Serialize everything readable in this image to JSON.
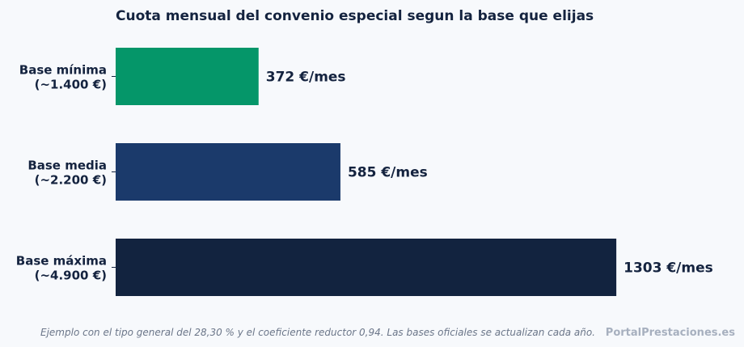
{
  "chart_data": {
    "type": "bar",
    "orientation": "horizontal",
    "title": "Cuota mensual del convenio especial segun la base que elijas",
    "categories": [
      [
        "Base mínima",
        "(~1.400 €)"
      ],
      [
        "Base media",
        "(~2.200 €)"
      ],
      [
        "Base máxima",
        "(~4.900 €)"
      ]
    ],
    "values": [
      372,
      585,
      1303
    ],
    "value_labels": [
      "372 €/mes",
      "585 €/mes",
      "1303 €/mes"
    ],
    "colors": [
      "#059669",
      "#1b3a6b",
      "#12233f"
    ],
    "xlabel": "",
    "ylabel": "",
    "xlim": [
      0,
      1368
    ],
    "grid": false
  },
  "footnote": "Ejemplo con el tipo general del 28,30 % y el coeficiente reductor 0,94. Las bases oficiales se actualizan cada año.",
  "brand": "PortalPrestaciones.es"
}
